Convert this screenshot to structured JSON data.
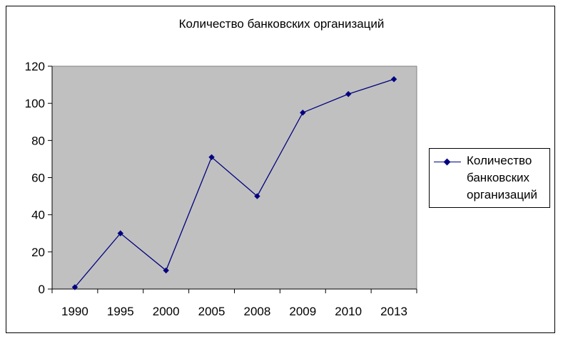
{
  "chart_data": {
    "type": "line",
    "title": "Количество банковских организаций",
    "xlabel": "",
    "ylabel": "",
    "categories": [
      "1990",
      "1995",
      "2000",
      "2005",
      "2008",
      "2009",
      "2010",
      "2013"
    ],
    "series": [
      {
        "name": "Количество банковских организаций",
        "values": [
          1,
          30,
          10,
          71,
          50,
          95,
          105,
          113
        ],
        "color": "#000080"
      }
    ],
    "ylim": [
      0,
      120
    ],
    "yticks": [
      0,
      20,
      40,
      60,
      80,
      100,
      120
    ],
    "grid": false,
    "plot_background": "#c0c0c0",
    "legend_position": "right"
  },
  "legend": {
    "line1": "Количество",
    "line2": "банковских",
    "line3": "организаций"
  }
}
